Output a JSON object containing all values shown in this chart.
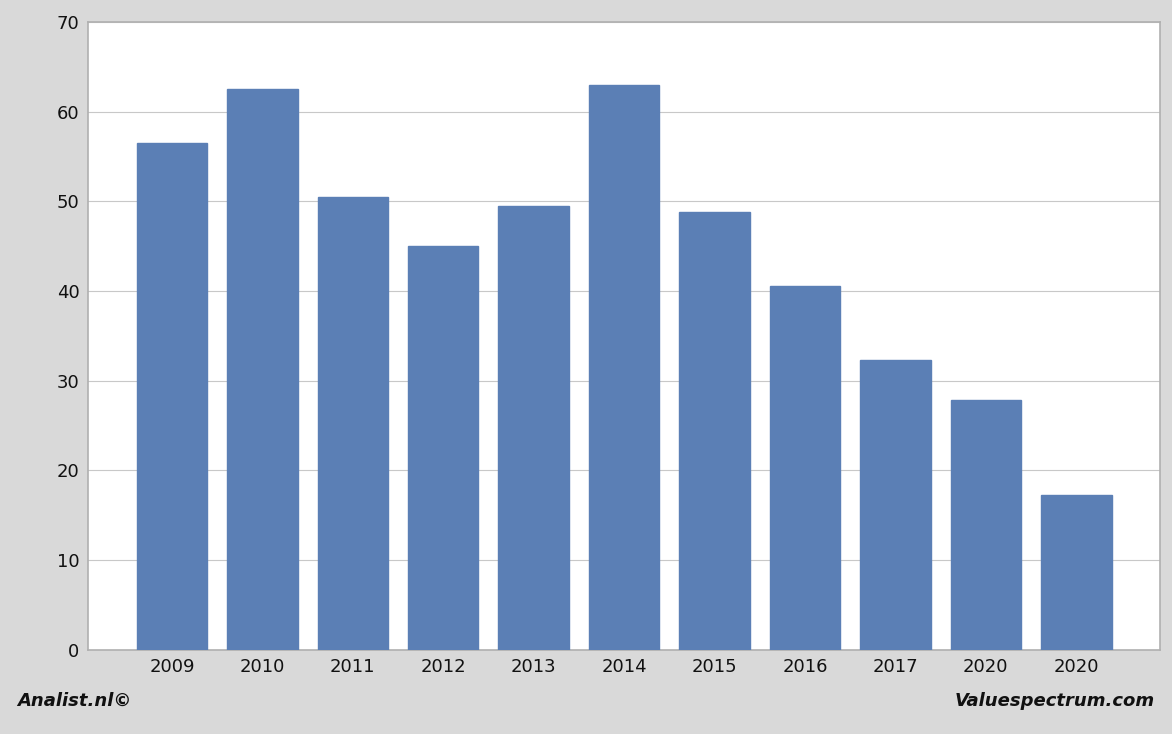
{
  "categories": [
    "2009",
    "2010",
    "2011",
    "2012",
    "2013",
    "2014",
    "2015",
    "2016",
    "2017",
    "2020",
    "2020"
  ],
  "values": [
    56.5,
    62.5,
    50.5,
    45.0,
    49.5,
    63.0,
    48.8,
    40.5,
    32.3,
    27.8,
    17.2
  ],
  "bar_color": "#5b7fb5",
  "ylim": [
    0,
    70
  ],
  "yticks": [
    0,
    10,
    20,
    30,
    40,
    50,
    60,
    70
  ],
  "background_color": "#d9d9d9",
  "plot_background_color": "#ffffff",
  "footer_left": "Analist.nl©",
  "footer_right": "Valuespectrum.com",
  "grid_color": "#c8c8c8",
  "bar_width": 0.78
}
